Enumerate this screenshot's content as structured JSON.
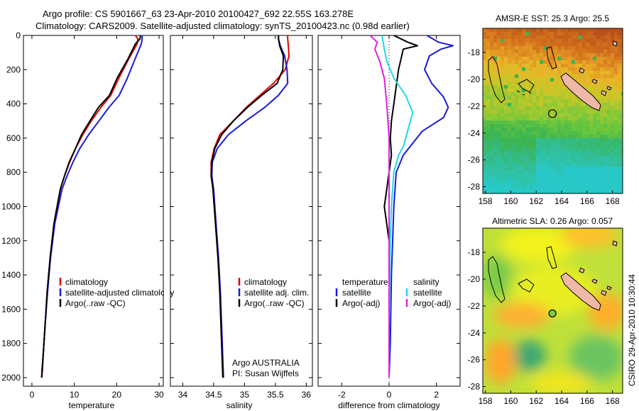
{
  "header": {
    "line1": "Argo profile: CS 5901667_63 23-Apr-2010 20100427_692 22.55S 163.278E",
    "line2": "Climatology: CARS2009. Satellite-adjusted climatology: synTS_20100423.nc (0.98d earlier)"
  },
  "footer_stamp": "CSIRO 29-Apr-2010 10:30:44",
  "chart_data": [
    {
      "id": "temperature",
      "type": "line",
      "xlabel": "temperature",
      "ylabel": "",
      "xlim": [
        -2,
        31
      ],
      "ylim": [
        2050,
        0
      ],
      "xticks": [
        0,
        10,
        20,
        30
      ],
      "yticks": [
        0,
        200,
        400,
        600,
        800,
        1000,
        1200,
        1400,
        1600,
        1800,
        2000
      ],
      "legend": [
        "climatology",
        "satellite-adjusted climatology",
        "Argo(..raw -QC)"
      ],
      "series": [
        {
          "name": "climatology",
          "color": "#e00000",
          "x": [
            24.4,
            25.0,
            24.8,
            22.8,
            20.5,
            18.6,
            16.3,
            14.0,
            12.0,
            10.3,
            8.9,
            7.7,
            6.7,
            5.2,
            4.3,
            3.6,
            3.1,
            2.7,
            2.5,
            2.3
          ],
          "y": [
            0,
            20,
            50,
            140,
            250,
            350,
            420,
            500,
            580,
            660,
            740,
            820,
            900,
            1100,
            1300,
            1500,
            1700,
            1850,
            1950,
            2000
          ]
        },
        {
          "name": "satellite-adjusted climatology",
          "color": "#1a1adc",
          "x": [
            26.0,
            26.0,
            25.8,
            24.3,
            22.5,
            20.6,
            18.2,
            15.8,
            13.4,
            11.3,
            9.7,
            8.3,
            7.1,
            5.4,
            4.4,
            3.7,
            3.1,
            2.7,
            2.4,
            2.3
          ],
          "y": [
            0,
            20,
            50,
            140,
            250,
            350,
            420,
            500,
            580,
            660,
            740,
            820,
            900,
            1100,
            1300,
            1500,
            1700,
            1850,
            1950,
            2000
          ]
        },
        {
          "name": "Argo(..raw -QC)",
          "color": "#000000",
          "x": [
            25.6,
            25.5,
            24.4,
            22.6,
            20.1,
            18.3,
            15.7,
            13.7,
            11.7,
            10.3,
            8.8,
            7.7,
            6.7,
            5.2,
            4.3,
            3.6,
            3.1,
            2.7,
            2.4,
            2.3
          ],
          "y": [
            0,
            20,
            50,
            140,
            250,
            350,
            420,
            500,
            580,
            660,
            740,
            820,
            900,
            1100,
            1300,
            1500,
            1700,
            1850,
            1950,
            2000
          ]
        }
      ]
    },
    {
      "id": "salinity",
      "type": "line",
      "xlabel": "salinity",
      "ylabel": "",
      "xlim": [
        33.8,
        36.1
      ],
      "ylim": [
        2050,
        0
      ],
      "xticks": [
        34,
        34.5,
        35,
        35.5,
        36
      ],
      "yticks": [
        0,
        200,
        400,
        600,
        800,
        1000,
        1200,
        1400,
        1600,
        1800,
        2000
      ],
      "legend": [
        "climatology",
        "satellite adj. clim.",
        "Argo(..raw -QC)"
      ],
      "annotation": [
        "Argo AUSTRALIA",
        "PI: Susan Wijffels"
      ],
      "series": [
        {
          "name": "climatology",
          "color": "#e00000",
          "x": [
            35.7,
            35.7,
            35.71,
            35.72,
            35.66,
            35.47,
            35.25,
            35.03,
            34.82,
            34.6,
            34.51,
            34.46,
            34.46,
            34.49,
            34.53,
            34.57,
            34.6,
            34.62,
            34.64,
            34.65
          ],
          "y": [
            0,
            20,
            60,
            120,
            200,
            280,
            350,
            420,
            500,
            580,
            660,
            740,
            820,
            900,
            1100,
            1300,
            1500,
            1700,
            1900,
            2000
          ]
        },
        {
          "name": "satellite adj. clim.",
          "color": "#1a1adc",
          "x": [
            35.55,
            35.55,
            35.58,
            35.65,
            35.69,
            35.7,
            35.55,
            35.33,
            35.02,
            34.74,
            34.56,
            34.48,
            34.47,
            34.5,
            34.54,
            34.58,
            34.61,
            34.63,
            34.65,
            34.66
          ],
          "y": [
            0,
            20,
            60,
            120,
            200,
            280,
            350,
            420,
            500,
            580,
            660,
            740,
            820,
            900,
            1100,
            1300,
            1500,
            1700,
            1900,
            2000
          ]
        },
        {
          "name": "Argo(..raw -QC)",
          "color": "#000000",
          "x": [
            35.55,
            35.55,
            35.57,
            35.63,
            35.62,
            35.53,
            35.28,
            35.05,
            34.82,
            34.63,
            34.52,
            34.47,
            34.46,
            34.49,
            34.53,
            34.57,
            34.6,
            34.62,
            34.64,
            34.65
          ],
          "y": [
            0,
            20,
            60,
            120,
            200,
            280,
            350,
            420,
            500,
            580,
            660,
            740,
            820,
            900,
            1100,
            1300,
            1500,
            1700,
            1900,
            2000
          ]
        }
      ]
    },
    {
      "id": "difference",
      "type": "line",
      "xlabel": "difference from climatology",
      "ylabel": "",
      "xlim": [
        -3.0,
        3.0
      ],
      "ylim": [
        2050,
        0
      ],
      "xticks": [
        -2,
        0,
        2
      ],
      "yticks": [
        0,
        200,
        400,
        600,
        800,
        1000,
        1200,
        1400,
        1600,
        1800,
        2000
      ],
      "zero_line": "dotted",
      "legend_groups": [
        {
          "title": "temperature",
          "items": [
            "satellite",
            "Argo(-adj)"
          ]
        },
        {
          "title": "salinity",
          "items": [
            "satellite",
            "Argo(-adj)"
          ]
        }
      ],
      "series": [
        {
          "name": "temperature satellite",
          "color": "#1a1adc",
          "x": [
            1.6,
            2.1,
            2.7,
            2.2,
            1.7,
            1.5,
            1.8,
            2.3,
            2.5,
            2.3,
            1.4,
            0.6,
            0.3,
            0.2,
            0.1,
            0.05,
            0.0
          ],
          "y": [
            0,
            40,
            60,
            80,
            120,
            200,
            280,
            360,
            420,
            480,
            560,
            700,
            800,
            1000,
            1400,
            1800,
            2000
          ]
        },
        {
          "name": "temperature Argo(-adj)",
          "color": "#000000",
          "x": [
            0.2,
            0.8,
            1.2,
            0.6,
            0.4,
            0.3,
            0.2,
            0.1,
            0.05,
            0.1,
            0.0,
            -0.1,
            -0.2,
            0.0,
            0.0,
            0.0,
            0.0
          ],
          "y": [
            0,
            40,
            60,
            80,
            200,
            300,
            400,
            500,
            600,
            700,
            800,
            900,
            1000,
            1200,
            1400,
            1800,
            2000
          ]
        },
        {
          "name": "salinity satellite",
          "color": "#20d8e8",
          "x": [
            -0.3,
            -0.2,
            -0.1,
            0.2,
            0.7,
            1.0,
            0.8,
            0.6,
            0.4,
            0.2,
            0.1,
            0.05,
            0.0,
            0.0
          ],
          "y": [
            0,
            80,
            150,
            250,
            350,
            450,
            550,
            650,
            700,
            800,
            1000,
            1200,
            1600,
            2000
          ]
        },
        {
          "name": "salinity Argo(-adj)",
          "color": "#e020e0",
          "x": [
            -0.8,
            -0.5,
            -0.6,
            -0.4,
            -0.2,
            -0.1,
            0.0,
            0.0,
            0.0,
            0.0
          ],
          "y": [
            0,
            40,
            80,
            150,
            250,
            400,
            600,
            800,
            1200,
            2000
          ]
        }
      ]
    },
    {
      "id": "sst_map",
      "type": "heatmap",
      "title": "AMSR-E SST: 25.3 Argo: 25.5",
      "xlim": [
        157.8,
        168.8
      ],
      "ylim": [
        -28.5,
        -16.2
      ],
      "xticks": [
        158,
        160,
        162,
        164,
        166,
        168
      ],
      "yticks": [
        -18,
        -20,
        -22,
        -24,
        -26,
        -28
      ],
      "argo_position": {
        "lon": 163.278,
        "lat": -22.55
      },
      "colormap": "jet"
    },
    {
      "id": "sla_map",
      "type": "heatmap",
      "title": "Altimetric SLA: 0.26 Argo: 0.057",
      "xlim": [
        157.8,
        168.8
      ],
      "ylim": [
        -28.5,
        -16.2
      ],
      "xticks": [
        158,
        160,
        162,
        164,
        166,
        168
      ],
      "yticks": [
        -18,
        -20,
        -22,
        -24,
        -26,
        -28
      ],
      "argo_position": {
        "lon": 163.278,
        "lat": -22.55
      },
      "colormap": "jet"
    }
  ]
}
